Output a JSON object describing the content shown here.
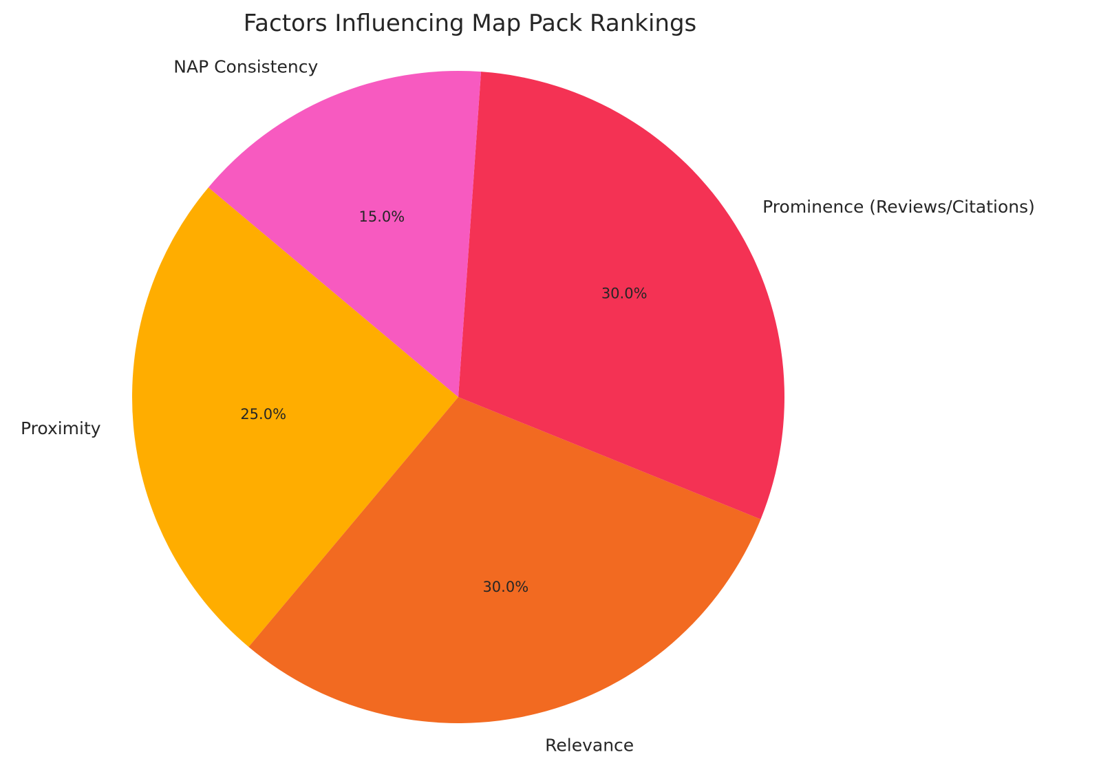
{
  "chart_data": {
    "type": "pie",
    "title": "Factors Influencing Map Pack Rankings",
    "start_angle_deg": 140,
    "direction": "counterclockwise",
    "slices": [
      {
        "label": "Proximity",
        "value": 25.0,
        "pct_label": "25.0%",
        "color": "#FFAD00"
      },
      {
        "label": "Relevance",
        "value": 30.0,
        "pct_label": "30.0%",
        "color": "#F26A21"
      },
      {
        "label": "Prominence (Reviews/Citations)",
        "value": 30.0,
        "pct_label": "30.0%",
        "color": "#F43254"
      },
      {
        "label": "NAP Consistency",
        "value": 15.0,
        "pct_label": "15.0%",
        "color": "#F75AC0"
      }
    ]
  }
}
